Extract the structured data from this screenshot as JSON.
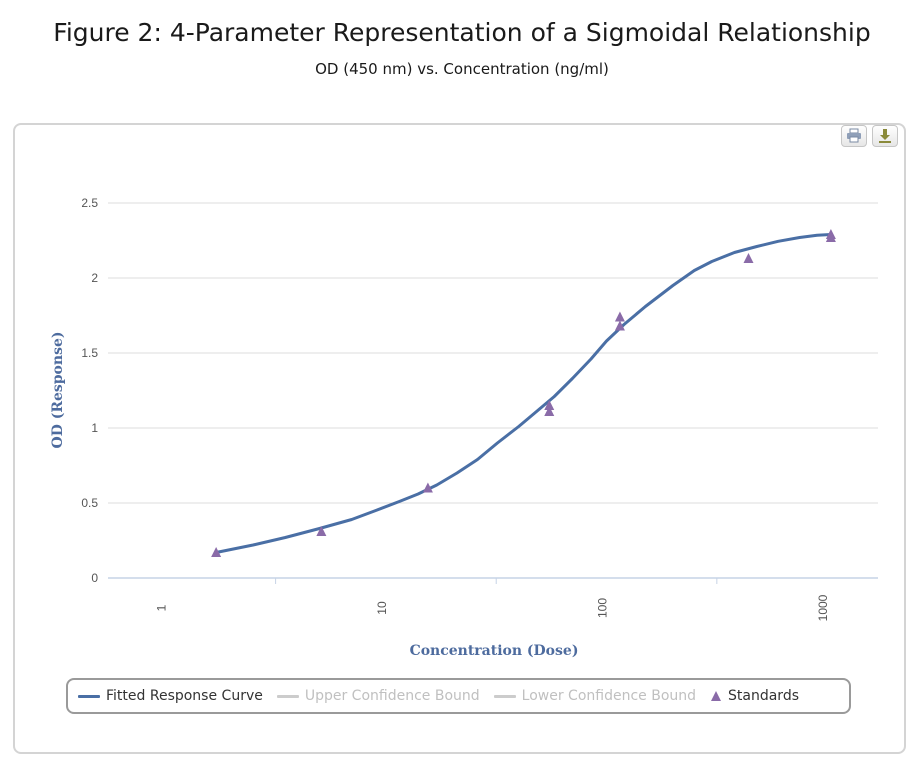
{
  "figure": {
    "title": "Figure 2: 4-Parameter Representation of a Sigmoidal Relationship",
    "subtitle": "OD (450 nm) vs. Concentration (ng/ml)"
  },
  "toolbar": {
    "print_icon": "printer-icon",
    "download_icon": "download-icon"
  },
  "colors": {
    "curve": "#4a6fa5",
    "standards": "#8a6ba8",
    "grid": "#dcdcdc",
    "axis": "#c6d3e6",
    "axis_title": "#4d6b9e",
    "hidden_series": "#cccccc"
  },
  "chart_data": {
    "type": "line",
    "xlabel": "Concentration (Dose)",
    "ylabel": "OD (Response)",
    "x_scale": "log",
    "xlim": [
      0.55,
      1700
    ],
    "ylim": [
      0,
      2.5
    ],
    "x_ticks": [
      1,
      10,
      100,
      1000
    ],
    "x_tick_labels": [
      "1",
      "10",
      "100",
      "1000"
    ],
    "y_ticks": [
      0,
      0.5,
      1,
      1.5,
      2,
      2.5
    ],
    "y_tick_labels": [
      "0",
      "0.5",
      "1",
      "1.5",
      "2",
      "2.5"
    ],
    "grid": true,
    "legend_position": "bottom",
    "series": [
      {
        "name": "Fitted Response Curve",
        "kind": "line",
        "visible": true,
        "x": [
          1.7,
          2.5,
          3.5,
          5,
          7,
          9,
          11.5,
          14,
          17,
          21,
          26,
          32,
          40,
          50,
          58,
          70,
          85,
          100,
          120,
          150,
          200,
          250,
          300,
          380,
          480,
          600,
          750,
          900,
          1040
        ],
        "y": [
          0.17,
          0.22,
          0.27,
          0.33,
          0.39,
          0.45,
          0.51,
          0.56,
          0.62,
          0.7,
          0.79,
          0.9,
          1.01,
          1.13,
          1.21,
          1.33,
          1.46,
          1.58,
          1.69,
          1.81,
          1.95,
          2.05,
          2.11,
          2.17,
          2.21,
          2.245,
          2.27,
          2.285,
          2.29
        ]
      },
      {
        "name": "Upper Confidence Bound",
        "kind": "line",
        "visible": false,
        "x": [],
        "y": []
      },
      {
        "name": "Lower Confidence Bound",
        "kind": "line",
        "visible": false,
        "x": [],
        "y": []
      },
      {
        "name": "Standards",
        "kind": "scatter",
        "visible": true,
        "x": [
          1.7,
          5.1,
          15.5,
          55,
          55,
          115,
          115,
          440,
          1040,
          1040
        ],
        "y": [
          0.17,
          0.31,
          0.6,
          1.15,
          1.11,
          1.74,
          1.68,
          2.13,
          2.29,
          2.27
        ]
      }
    ]
  }
}
